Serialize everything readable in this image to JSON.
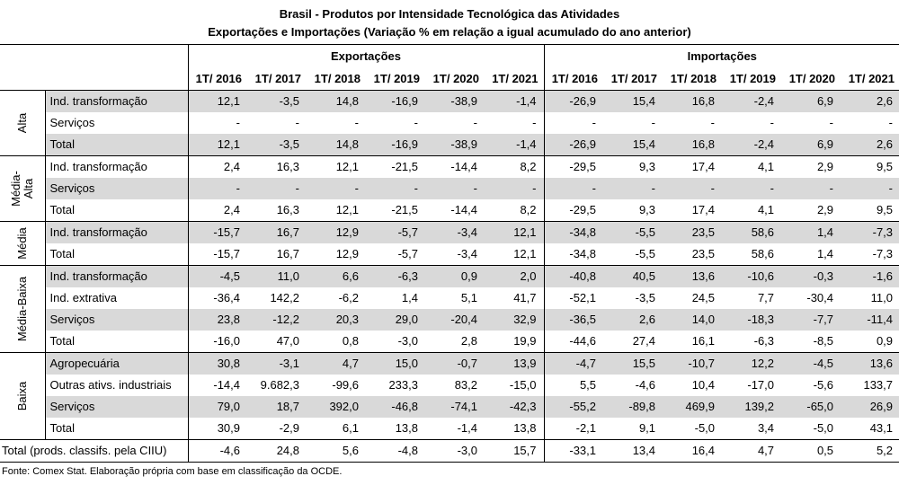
{
  "title": "Brasil - Produtos por Intensidade Tecnológica das Atividades",
  "subtitle": "Exportações e Importações (Variação % em relação a igual acumulado do ano anterior)",
  "groups": [
    "Exportações",
    "Importações"
  ],
  "years": [
    "1T/ 2016",
    "1T/ 2017",
    "1T/ 2018",
    "1T/ 2019",
    "1T/ 2020",
    "1T/ 2021"
  ],
  "sections": [
    {
      "label": "Alta",
      "rows": [
        {
          "label": "Ind. transformação",
          "shaded": true,
          "values": [
            "12,1",
            "-3,5",
            "14,8",
            "-16,9",
            "-38,9",
            "-1,4",
            "-26,9",
            "15,4",
            "16,8",
            "-2,4",
            "6,9",
            "2,6"
          ]
        },
        {
          "label": "Serviços",
          "shaded": false,
          "values": [
            "-",
            "-",
            "-",
            "-",
            "-",
            "-",
            "-",
            "-",
            "-",
            "-",
            "-",
            "-"
          ]
        },
        {
          "label": "Total",
          "shaded": true,
          "values": [
            "12,1",
            "-3,5",
            "14,8",
            "-16,9",
            "-38,9",
            "-1,4",
            "-26,9",
            "15,4",
            "16,8",
            "-2,4",
            "6,9",
            "2,6"
          ]
        }
      ]
    },
    {
      "label": "Média-\nAlta",
      "rows": [
        {
          "label": "Ind. transformação",
          "shaded": false,
          "values": [
            "2,4",
            "16,3",
            "12,1",
            "-21,5",
            "-14,4",
            "8,2",
            "-29,5",
            "9,3",
            "17,4",
            "4,1",
            "2,9",
            "9,5"
          ]
        },
        {
          "label": "Serviços",
          "shaded": true,
          "values": [
            "-",
            "-",
            "-",
            "-",
            "-",
            "-",
            "-",
            "-",
            "-",
            "-",
            "-",
            "-"
          ]
        },
        {
          "label": "Total",
          "shaded": false,
          "values": [
            "2,4",
            "16,3",
            "12,1",
            "-21,5",
            "-14,4",
            "8,2",
            "-29,5",
            "9,3",
            "17,4",
            "4,1",
            "2,9",
            "9,5"
          ]
        }
      ]
    },
    {
      "label": "Média",
      "rows": [
        {
          "label": "Ind. transformação",
          "shaded": true,
          "values": [
            "-15,7",
            "16,7",
            "12,9",
            "-5,7",
            "-3,4",
            "12,1",
            "-34,8",
            "-5,5",
            "23,5",
            "58,6",
            "1,4",
            "-7,3"
          ]
        },
        {
          "label": "Total",
          "shaded": false,
          "values": [
            "-15,7",
            "16,7",
            "12,9",
            "-5,7",
            "-3,4",
            "12,1",
            "-34,8",
            "-5,5",
            "23,5",
            "58,6",
            "1,4",
            "-7,3"
          ]
        }
      ]
    },
    {
      "label": "Média-Baixa",
      "rows": [
        {
          "label": "Ind. transformação",
          "shaded": true,
          "values": [
            "-4,5",
            "11,0",
            "6,6",
            "-6,3",
            "0,9",
            "2,0",
            "-40,8",
            "40,5",
            "13,6",
            "-10,6",
            "-0,3",
            "-1,6"
          ]
        },
        {
          "label": "Ind. extrativa",
          "shaded": false,
          "values": [
            "-36,4",
            "142,2",
            "-6,2",
            "1,4",
            "5,1",
            "41,7",
            "-52,1",
            "-3,5",
            "24,5",
            "7,7",
            "-30,4",
            "11,0"
          ]
        },
        {
          "label": "Serviços",
          "shaded": true,
          "values": [
            "23,8",
            "-12,2",
            "20,3",
            "29,0",
            "-20,4",
            "32,9",
            "-36,5",
            "2,6",
            "14,0",
            "-18,3",
            "-7,7",
            "-11,4"
          ]
        },
        {
          "label": "Total",
          "shaded": false,
          "values": [
            "-16,0",
            "47,0",
            "0,8",
            "-3,0",
            "2,8",
            "19,9",
            "-44,6",
            "27,4",
            "16,1",
            "-6,3",
            "-8,5",
            "0,9"
          ]
        }
      ]
    },
    {
      "label": "Baixa",
      "rows": [
        {
          "label": "Agropecuária",
          "shaded": true,
          "values": [
            "30,8",
            "-3,1",
            "4,7",
            "15,0",
            "-0,7",
            "13,9",
            "-4,7",
            "15,5",
            "-10,7",
            "12,2",
            "-4,5",
            "13,6"
          ]
        },
        {
          "label": "Outras ativs. industriais",
          "shaded": false,
          "values": [
            "-14,4",
            "9.682,3",
            "-99,6",
            "233,3",
            "83,2",
            "-15,0",
            "5,5",
            "-4,6",
            "10,4",
            "-17,0",
            "-5,6",
            "133,7"
          ]
        },
        {
          "label": "Serviços",
          "shaded": true,
          "values": [
            "79,0",
            "18,7",
            "392,0",
            "-46,8",
            "-74,1",
            "-42,3",
            "-55,2",
            "-89,8",
            "469,9",
            "139,2",
            "-65,0",
            "26,9"
          ]
        },
        {
          "label": "Total",
          "shaded": false,
          "values": [
            "30,9",
            "-2,9",
            "6,1",
            "13,8",
            "-1,4",
            "13,8",
            "-2,1",
            "9,1",
            "-5,0",
            "3,4",
            "-5,0",
            "43,1"
          ]
        }
      ]
    }
  ],
  "grand_total": {
    "label": "Total (prods. classifs. pela CIIU)",
    "values": [
      "-4,6",
      "24,8",
      "5,6",
      "-4,8",
      "-3,0",
      "15,7",
      "-33,1",
      "13,4",
      "16,4",
      "4,7",
      "0,5",
      "5,2"
    ]
  },
  "footnote": "Fonte: Comex Stat. Elaboração própria com base em classificação da OCDE.",
  "colors": {
    "shade": "#d9d9d9",
    "border": "#000000"
  }
}
